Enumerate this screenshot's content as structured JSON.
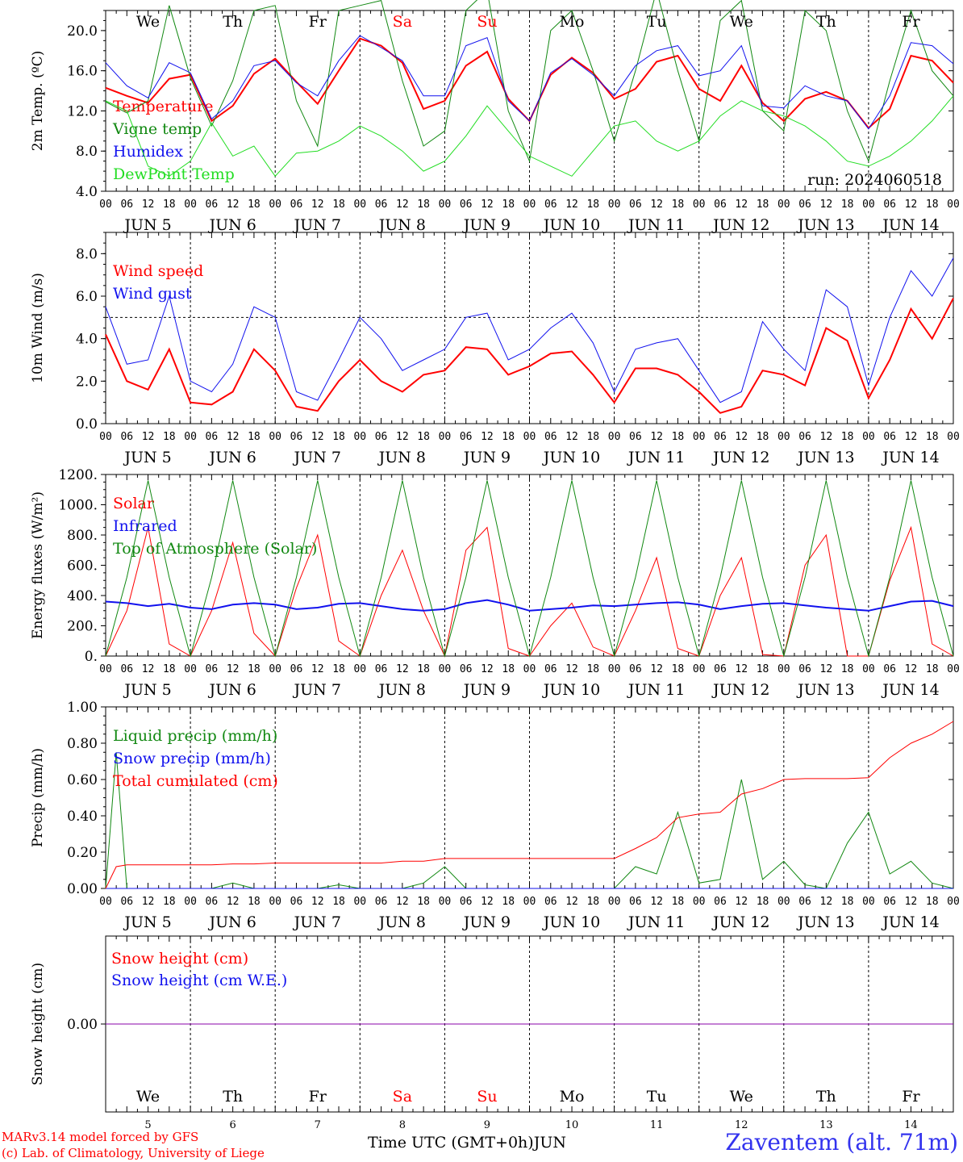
{
  "days": [
    "We",
    "Th",
    "Fr",
    "Sa",
    "Su",
    "Mo",
    "Tu",
    "We",
    "Th",
    "Fr"
  ],
  "weekend_days": [
    3,
    4
  ],
  "dates": [
    "JUN  5",
    "JUN  6",
    "JUN  7",
    "JUN  8",
    "JUN  9",
    "JUN 10",
    "JUN 11",
    "JUN 12",
    "JUN 13",
    "JUN 14"
  ],
  "bottom_dates": [
    "5",
    "6",
    "7",
    "8",
    "9",
    "10",
    "11",
    "12",
    "13",
    "14"
  ],
  "hour_ticks": [
    "00",
    "06",
    "12",
    "18"
  ],
  "hour_final": "00",
  "colors": {
    "red": "#ff0000",
    "green": "#118811",
    "blue": "#1111ee",
    "light_green": "#22dd22",
    "purple": "#8800aa",
    "weekend": "#ff0000"
  },
  "chart_data": [
    {
      "type": "line",
      "ylabel": "2m Temp. (ºC)",
      "ylim": [
        4,
        22
      ],
      "yticks": [
        "4.0",
        "8.0",
        "12.0",
        "16.0",
        "20.0"
      ],
      "ytick_values": [
        4,
        8,
        12,
        16,
        20
      ],
      "run_label": "run: 2024060518",
      "x_hours": [
        0,
        6,
        12,
        18,
        24,
        30,
        36,
        42,
        48,
        54,
        60,
        66,
        72,
        78,
        84,
        90,
        96,
        102,
        108,
        114,
        120,
        126,
        132,
        138,
        144,
        150,
        156,
        162,
        168,
        174,
        180,
        186,
        192,
        198,
        204,
        210,
        216,
        222,
        228,
        234,
        240
      ],
      "series": [
        {
          "name": "Temperature",
          "color": "red",
          "width": 2,
          "values": [
            14.3,
            13.5,
            12.8,
            15.2,
            15.6,
            11.0,
            12.5,
            15.7,
            17.2,
            14.9,
            12.7,
            16.0,
            19.2,
            18.5,
            16.8,
            12.2,
            13.0,
            16.5,
            17.9,
            13.2,
            11.0,
            15.6,
            17.3,
            15.8,
            13.2,
            14.2,
            16.9,
            17.5,
            14.2,
            13.0,
            16.5,
            12.8,
            11.0,
            13.2,
            13.9,
            13.0,
            10.3,
            12.2,
            17.5,
            17.0,
            14.8
          ]
        },
        {
          "name": "Vigne temp",
          "color": "green",
          "width": 1,
          "values": [
            12.9,
            11.8,
            13.0,
            22.5,
            15.3,
            10.5,
            15.0,
            22.0,
            22.5,
            13.0,
            8.5,
            22.0,
            22.5,
            23.0,
            15.0,
            8.5,
            10.0,
            22.0,
            24.0,
            12.0,
            7.0,
            20.0,
            22.0,
            16.0,
            9.0,
            16.0,
            24.0,
            16.0,
            9.0,
            21.0,
            23.0,
            12.0,
            10.0,
            22.0,
            20.0,
            12.0,
            7.0,
            15.0,
            22.0,
            16.0,
            13.5
          ]
        },
        {
          "name": "Humidex",
          "color": "blue",
          "width": 1,
          "values": [
            16.8,
            14.5,
            13.3,
            16.8,
            15.8,
            11.2,
            13.0,
            16.5,
            17.0,
            14.8,
            13.5,
            17.0,
            19.5,
            18.3,
            17.0,
            13.5,
            13.5,
            18.5,
            19.3,
            13.0,
            11.0,
            15.8,
            17.2,
            15.6,
            13.5,
            16.5,
            18.0,
            18.5,
            15.5,
            16.0,
            18.5,
            12.5,
            12.3,
            14.5,
            13.5,
            13.0,
            10.2,
            13.5,
            18.8,
            18.5,
            16.7
          ]
        },
        {
          "name": "DewPoint Temp",
          "color": "light_green",
          "width": 1,
          "values": [
            13.0,
            12.0,
            6.5,
            5.5,
            7.0,
            10.8,
            7.5,
            8.5,
            5.5,
            7.8,
            8.0,
            9.0,
            10.5,
            9.5,
            8.0,
            6.0,
            7.0,
            9.5,
            12.5,
            10.0,
            7.5,
            6.5,
            5.5,
            8.0,
            10.5,
            11.0,
            9.0,
            8.0,
            9.0,
            11.5,
            13.0,
            12.0,
            11.5,
            10.5,
            9.0,
            7.0,
            6.5,
            7.5,
            9.0,
            11.0,
            13.5
          ]
        }
      ]
    },
    {
      "type": "line",
      "ylabel": "10m Wind (m/s)",
      "ylim": [
        0,
        9
      ],
      "yticks": [
        "0.0",
        "2.0",
        "4.0",
        "6.0",
        "8.0"
      ],
      "ytick_values": [
        0,
        2,
        4,
        6,
        8
      ],
      "reference_line": 5,
      "x_hours": [
        0,
        6,
        12,
        18,
        24,
        30,
        36,
        42,
        48,
        54,
        60,
        66,
        72,
        78,
        84,
        90,
        96,
        102,
        108,
        114,
        120,
        126,
        132,
        138,
        144,
        150,
        156,
        162,
        168,
        174,
        180,
        186,
        192,
        198,
        204,
        210,
        216,
        222,
        228,
        234,
        240
      ],
      "series": [
        {
          "name": "Wind speed",
          "color": "red",
          "width": 2,
          "values": [
            4.2,
            2.0,
            1.6,
            3.5,
            1.0,
            0.9,
            1.5,
            3.5,
            2.5,
            0.8,
            0.6,
            2.0,
            3.0,
            2.0,
            1.5,
            2.3,
            2.5,
            3.6,
            3.5,
            2.3,
            2.7,
            3.3,
            3.4,
            2.3,
            1.0,
            2.6,
            2.6,
            2.3,
            1.5,
            0.5,
            0.8,
            2.5,
            2.3,
            1.8,
            4.5,
            3.9,
            1.2,
            3.0,
            5.4,
            4.0,
            5.9
          ]
        },
        {
          "name": "Wind gust",
          "color": "blue",
          "width": 1,
          "values": [
            5.5,
            2.8,
            3.0,
            6.0,
            2.0,
            1.5,
            2.8,
            5.5,
            5.0,
            1.5,
            1.1,
            3.0,
            5.0,
            4.0,
            2.5,
            3.0,
            3.5,
            5.0,
            5.2,
            3.0,
            3.5,
            4.5,
            5.2,
            3.8,
            1.5,
            3.5,
            3.8,
            4.0,
            2.5,
            1.0,
            1.5,
            4.8,
            3.5,
            2.5,
            6.3,
            5.5,
            1.8,
            5.0,
            7.2,
            6.0,
            7.8
          ]
        }
      ]
    },
    {
      "type": "line",
      "ylabel": "Energy fluxes (W/m²)",
      "ylim": [
        0,
        1200
      ],
      "yticks": [
        "0.",
        "200.",
        "400.",
        "600.",
        "800.",
        "1000.",
        "1200."
      ],
      "ytick_values": [
        0,
        200,
        400,
        600,
        800,
        1000,
        1200
      ],
      "x_hours": [
        0,
        6,
        12,
        18,
        24,
        30,
        36,
        42,
        48,
        54,
        60,
        66,
        72,
        78,
        84,
        90,
        96,
        102,
        108,
        114,
        120,
        126,
        132,
        138,
        144,
        150,
        156,
        162,
        168,
        174,
        180,
        186,
        192,
        198,
        204,
        210,
        216,
        222,
        228,
        234,
        240
      ],
      "series": [
        {
          "name": "Solar",
          "color": "red",
          "width": 1,
          "values": [
            0,
            300,
            850,
            80,
            0,
            300,
            750,
            150,
            0,
            450,
            800,
            100,
            0,
            400,
            700,
            300,
            0,
            700,
            850,
            50,
            0,
            200,
            350,
            60,
            0,
            300,
            650,
            50,
            0,
            400,
            650,
            10,
            0,
            600,
            800,
            0,
            0,
            500,
            850,
            80,
            0
          ]
        },
        {
          "name": "Infrared",
          "color": "blue",
          "width": 2,
          "values": [
            360,
            350,
            330,
            345,
            320,
            310,
            340,
            350,
            340,
            310,
            320,
            345,
            350,
            330,
            310,
            300,
            310,
            350,
            370,
            340,
            300,
            310,
            320,
            335,
            330,
            340,
            350,
            355,
            340,
            310,
            330,
            345,
            350,
            335,
            320,
            310,
            300,
            330,
            360,
            365,
            330
          ]
        },
        {
          "name": "Top of Atmosphere (Solar)",
          "color": "green",
          "width": 1,
          "values": [
            0,
            520,
            1160,
            520,
            0,
            520,
            1160,
            520,
            0,
            520,
            1160,
            520,
            0,
            520,
            1160,
            520,
            0,
            520,
            1160,
            520,
            0,
            520,
            1160,
            520,
            0,
            520,
            1160,
            520,
            0,
            520,
            1160,
            520,
            0,
            520,
            1160,
            520,
            0,
            520,
            1160,
            520,
            0
          ]
        }
      ]
    },
    {
      "type": "line",
      "ylabel": "Precip (mm/h)",
      "ylim": [
        0,
        1
      ],
      "yticks": [
        "0.00",
        "0.20",
        "0.40",
        "0.60",
        "0.80",
        "1.00"
      ],
      "ytick_values": [
        0,
        0.2,
        0.4,
        0.6,
        0.8,
        1.0
      ],
      "x_hours": [
        0,
        3,
        6,
        12,
        18,
        24,
        30,
        36,
        42,
        48,
        54,
        60,
        66,
        72,
        78,
        84,
        90,
        96,
        102,
        108,
        114,
        120,
        126,
        132,
        138,
        144,
        150,
        156,
        162,
        168,
        174,
        180,
        186,
        192,
        198,
        204,
        210,
        216,
        222,
        228,
        234,
        240
      ],
      "series": [
        {
          "name": "Liquid precip (mm/h)",
          "color": "green",
          "width": 1,
          "values": [
            0,
            0.75,
            0,
            0,
            0,
            0,
            0,
            0.03,
            0,
            0,
            0,
            0,
            0.02,
            0,
            0,
            0,
            0.03,
            0.12,
            0,
            0,
            0,
            0,
            0,
            0,
            0,
            0,
            0.12,
            0.08,
            0.42,
            0.03,
            0.05,
            0.6,
            0.05,
            0.15,
            0.02,
            0,
            0.25,
            0.42,
            0.08,
            0.15,
            0.03,
            0
          ]
        },
        {
          "name": "Snow precip (mm/h)",
          "color": "blue",
          "width": 1,
          "values": [
            0,
            0,
            0,
            0,
            0,
            0,
            0,
            0,
            0,
            0,
            0,
            0,
            0,
            0,
            0,
            0,
            0,
            0,
            0,
            0,
            0,
            0,
            0,
            0,
            0,
            0,
            0,
            0,
            0,
            0,
            0,
            0,
            0,
            0,
            0,
            0,
            0,
            0,
            0,
            0,
            0,
            0
          ]
        },
        {
          "name": "Total cumulated (cm)",
          "color": "red",
          "width": 1,
          "values": [
            0,
            0.12,
            0.13,
            0.13,
            0.13,
            0.13,
            0.13,
            0.135,
            0.135,
            0.14,
            0.14,
            0.14,
            0.14,
            0.14,
            0.14,
            0.15,
            0.15,
            0.165,
            0.165,
            0.165,
            0.165,
            0.165,
            0.165,
            0.165,
            0.165,
            0.165,
            0.22,
            0.28,
            0.39,
            0.41,
            0.42,
            0.52,
            0.55,
            0.6,
            0.605,
            0.605,
            0.605,
            0.61,
            0.72,
            0.8,
            0.85,
            0.92
          ]
        }
      ]
    },
    {
      "type": "line",
      "ylabel": "Snow height (cm)",
      "ylim": [
        -1,
        1
      ],
      "yticks": [
        "0.00"
      ],
      "ytick_values": [
        0
      ],
      "x_hours": [
        0,
        240
      ],
      "series": [
        {
          "name": "Snow height (cm)",
          "color": "red",
          "width": 1,
          "values": [
            0,
            0
          ]
        },
        {
          "name": "Snow height (cm W.E.)",
          "color": "blue",
          "width": 1,
          "values": [
            0,
            0
          ]
        }
      ]
    }
  ],
  "footer": {
    "model": "MARv3.14 model forced by GFS",
    "lab": "(c) Lab. of Climatology, University of Liege",
    "axis_title": "Time UTC (GMT+0h)",
    "month": "JUN",
    "station": "Zaventem (alt. 71m)"
  }
}
